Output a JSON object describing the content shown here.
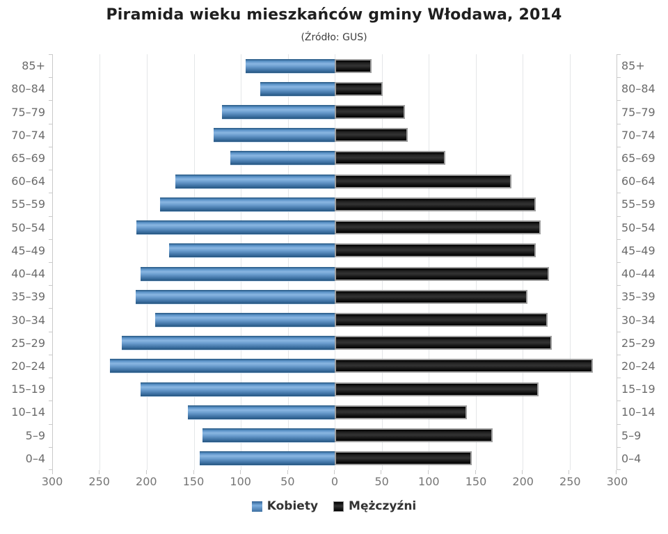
{
  "title": "Piramida wieku mieszkańców gminy Włodawa, 2014",
  "subtitle": "(Źródło: GUS)",
  "colors": {
    "female_bar": "#5c94c9",
    "male_bar": "#111111",
    "male_bar_border": "#9e9e9e",
    "gridline": "#e4e6e8",
    "axis_line": "#c9c9c9",
    "axis_label": "#757575",
    "category_label": "#6b6b6b",
    "title_text": "#1f1f1f"
  },
  "legend": [
    {
      "label": "Kobiety",
      "swatch": "blue-square"
    },
    {
      "label": "Mężczyźni",
      "swatch": "black-square"
    }
  ],
  "chart_data": {
    "type": "bar",
    "variant": "population-pyramid",
    "title": "Piramida wieku mieszkańców gminy Włodawa, 2014",
    "subtitle": "(Źródło: GUS)",
    "categories": [
      "85+",
      "80–84",
      "75–79",
      "70–74",
      "65–69",
      "60–64",
      "55–59",
      "50–54",
      "45–49",
      "40–44",
      "35–39",
      "30–34",
      "25–29",
      "20–24",
      "15–19",
      "10–14",
      "5–9",
      "0–4"
    ],
    "series": [
      {
        "name": "Kobiety",
        "side": "left",
        "values": [
          95,
          79,
          120,
          129,
          111,
          170,
          186,
          211,
          176,
          207,
          212,
          191,
          227,
          239,
          207,
          156,
          141,
          144
        ]
      },
      {
        "name": "Mężczyźni",
        "side": "right",
        "values": [
          39,
          51,
          75,
          78,
          118,
          188,
          214,
          219,
          214,
          228,
          205,
          227,
          231,
          275,
          217,
          141,
          168,
          146
        ]
      }
    ],
    "axis_max_per_side": 300,
    "x_tick_step": 50,
    "x_tick_labels": [
      "300",
      "250",
      "200",
      "150",
      "100",
      "50",
      "0",
      "50",
      "100",
      "150",
      "200",
      "250",
      "300"
    ],
    "grid": true,
    "legend_position": "bottom",
    "category_labels_shown": "both-sides"
  }
}
